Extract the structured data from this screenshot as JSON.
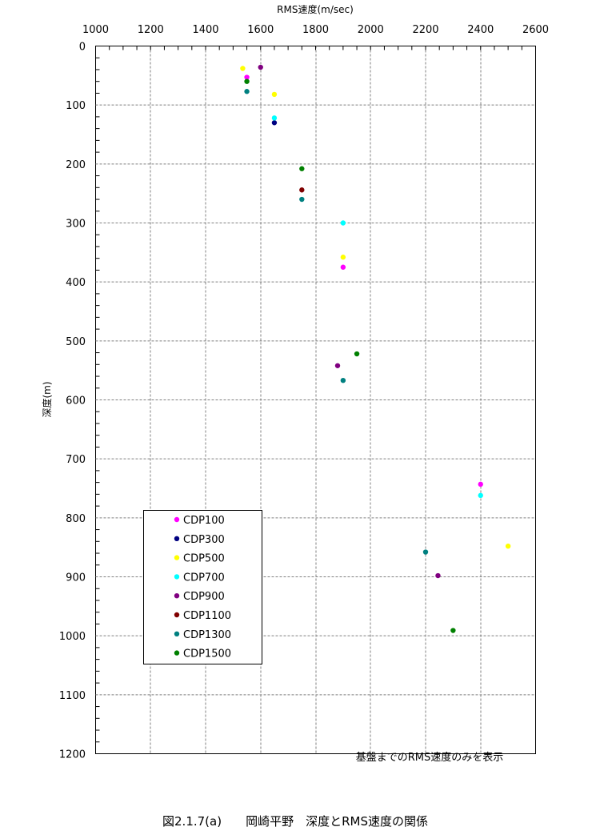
{
  "chart_data": {
    "type": "scatter",
    "title": "",
    "xlabel": "RMS速度(m/sec)",
    "ylabel": "深度(m)",
    "xlim": [
      1000,
      2600
    ],
    "ylim": [
      0,
      1200
    ],
    "y_inverted": true,
    "x_axis_position": "top",
    "x_ticks": [
      1000,
      1200,
      1400,
      1600,
      1800,
      2000,
      2200,
      2400,
      2600
    ],
    "y_ticks": [
      0,
      100,
      200,
      300,
      400,
      500,
      600,
      700,
      800,
      900,
      1000,
      1100,
      1200
    ],
    "grid": true,
    "legend_position": "bottom-left",
    "note": "基盤までのRMS速度のみを表示",
    "series": [
      {
        "name": "CDP100",
        "color": "#ff00ff",
        "points": [
          [
            1550,
            53
          ],
          [
            1900,
            375
          ],
          [
            2400,
            743
          ]
        ]
      },
      {
        "name": "CDP300",
        "color": "#000080",
        "points": [
          [
            1650,
            130
          ]
        ]
      },
      {
        "name": "CDP500",
        "color": "#ffff00",
        "points": [
          [
            1535,
            38
          ],
          [
            1650,
            82
          ],
          [
            1900,
            358
          ],
          [
            2500,
            848
          ]
        ]
      },
      {
        "name": "CDP700",
        "color": "#00ffff",
        "points": [
          [
            1650,
            122
          ],
          [
            1900,
            300
          ],
          [
            2400,
            762
          ]
        ]
      },
      {
        "name": "CDP900",
        "color": "#800080",
        "points": [
          [
            1600,
            36
          ],
          [
            1880,
            542
          ],
          [
            2245,
            898
          ]
        ]
      },
      {
        "name": "CDP1100",
        "color": "#800000",
        "points": [
          [
            1750,
            244
          ]
        ]
      },
      {
        "name": "CDP1300",
        "color": "#008080",
        "points": [
          [
            1550,
            77
          ],
          [
            1750,
            260
          ],
          [
            1900,
            567
          ],
          [
            2200,
            858
          ]
        ]
      },
      {
        "name": "CDP1500",
        "color": "#008000",
        "points": [
          [
            1550,
            60
          ],
          [
            1750,
            208
          ],
          [
            1950,
            522
          ],
          [
            2300,
            991
          ]
        ]
      }
    ]
  },
  "caption": "図2.1.7(a)　　岡崎平野　深度とRMS速度の関係"
}
